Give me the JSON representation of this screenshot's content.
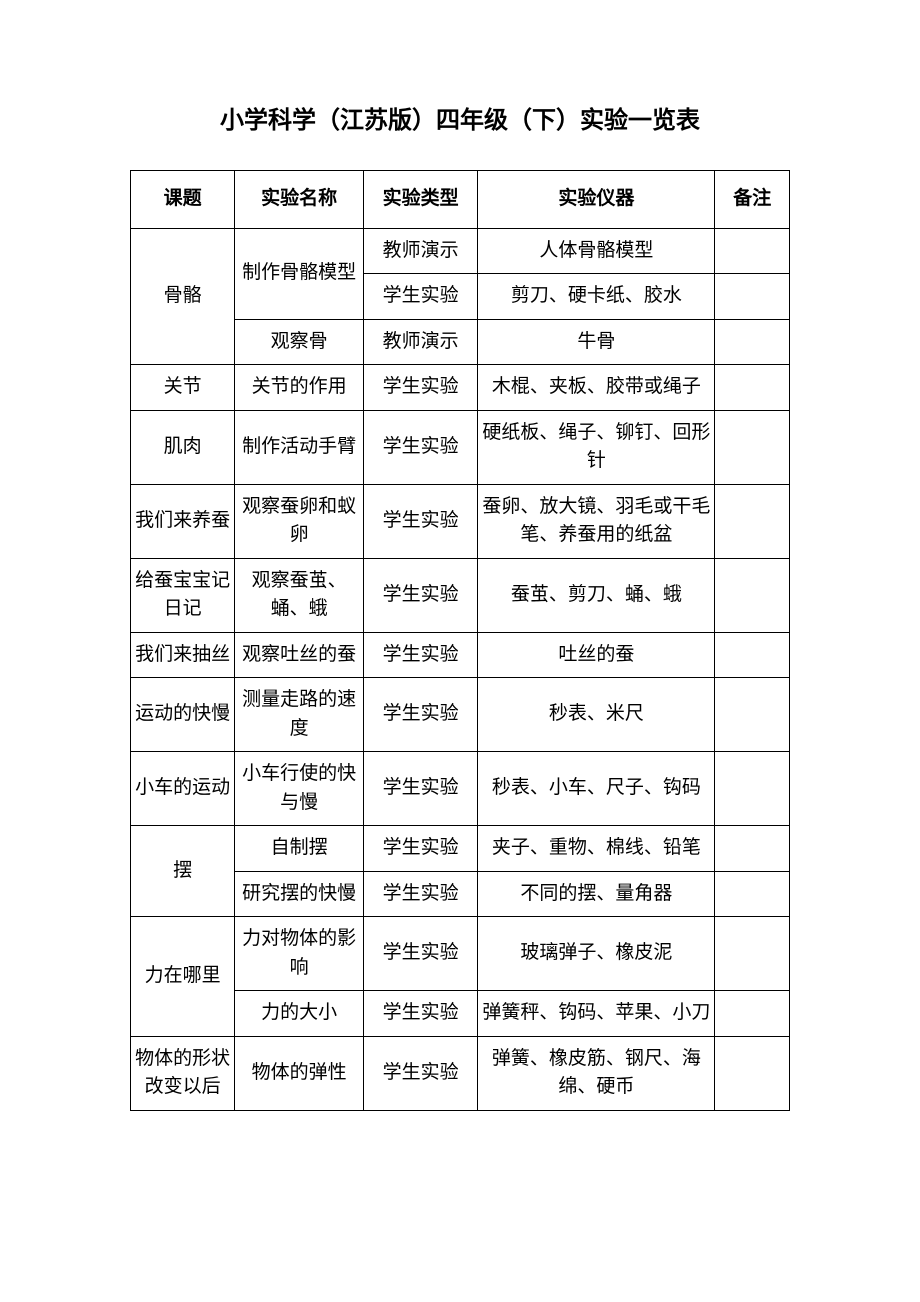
{
  "title": "小学科学（江苏版）四年级（下）实验一览表",
  "table": {
    "headers": {
      "topic": "课题",
      "name": "实验名称",
      "type": "实验类型",
      "equipment": "实验仪器",
      "remark": "备注"
    },
    "rows": [
      {
        "topic": "骨骼",
        "topic_rowspan": 3,
        "name": "制作骨骼模型",
        "name_rowspan": 2,
        "type": "教师演示",
        "equipment": "人体骨骼模型",
        "remark": ""
      },
      {
        "type": "学生实验",
        "equipment": "剪刀、硬卡纸、胶水",
        "remark": ""
      },
      {
        "name": "观察骨",
        "name_rowspan": 1,
        "type": "教师演示",
        "equipment": "牛骨",
        "remark": ""
      },
      {
        "topic": "关节",
        "topic_rowspan": 1,
        "name": "关节的作用",
        "name_rowspan": 1,
        "type": "学生实验",
        "equipment": "木棍、夹板、胶带或绳子",
        "remark": ""
      },
      {
        "topic": "肌肉",
        "topic_rowspan": 1,
        "name": "制作活动手臂",
        "name_rowspan": 1,
        "type": "学生实验",
        "equipment": "硬纸板、绳子、铆钉、回形针",
        "remark": ""
      },
      {
        "topic": "我们来养蚕",
        "topic_rowspan": 1,
        "name": "观察蚕卵和蚁卵",
        "name_rowspan": 1,
        "type": "学生实验",
        "equipment": "蚕卵、放大镜、羽毛或干毛笔、养蚕用的纸盆",
        "remark": ""
      },
      {
        "topic": "给蚕宝宝记日记",
        "topic_rowspan": 1,
        "name": "观察蚕茧、蛹、蛾",
        "name_rowspan": 1,
        "type": "学生实验",
        "equipment": "蚕茧、剪刀、蛹、蛾",
        "remark": ""
      },
      {
        "topic": "我们来抽丝",
        "topic_rowspan": 1,
        "name": "观察吐丝的蚕",
        "name_rowspan": 1,
        "type": "学生实验",
        "equipment": "吐丝的蚕",
        "remark": ""
      },
      {
        "topic": "运动的快慢",
        "topic_rowspan": 1,
        "name": "测量走路的速度",
        "name_rowspan": 1,
        "type": "学生实验",
        "equipment": "秒表、米尺",
        "remark": ""
      },
      {
        "topic": "小车的运动",
        "topic_rowspan": 1,
        "name": "小车行使的快与慢",
        "name_rowspan": 1,
        "type": "学生实验",
        "equipment": "秒表、小车、尺子、钩码",
        "remark": ""
      },
      {
        "topic": "摆",
        "topic_rowspan": 2,
        "name": "自制摆",
        "name_rowspan": 1,
        "type": "学生实验",
        "equipment": "夹子、重物、棉线、铅笔",
        "remark": ""
      },
      {
        "name": "研究摆的快慢",
        "name_rowspan": 1,
        "type": "学生实验",
        "equipment": "不同的摆、量角器",
        "remark": ""
      },
      {
        "topic": "力在哪里",
        "topic_rowspan": 2,
        "name": "力对物体的影响",
        "name_rowspan": 1,
        "type": "学生实验",
        "equipment": "玻璃弹子、橡皮泥",
        "remark": ""
      },
      {
        "name": "力的大小",
        "name_rowspan": 1,
        "type": "学生实验",
        "equipment": "弹簧秤、钩码、苹果、小刀",
        "remark": ""
      },
      {
        "topic": "物体的形状改变以后",
        "topic_rowspan": 1,
        "name": "物体的弹性",
        "name_rowspan": 1,
        "type": "学生实验",
        "equipment": "弹簧、橡皮筋、钢尺、海绵、硬币",
        "remark": ""
      }
    ],
    "colors": {
      "border": "#000000",
      "background": "#ffffff",
      "text": "#000000"
    },
    "column_widths": {
      "topic": 102,
      "name": 126,
      "type": 112,
      "equipment": 232,
      "remark": 73
    },
    "title_fontsize": 24,
    "cell_fontsize": 19
  }
}
